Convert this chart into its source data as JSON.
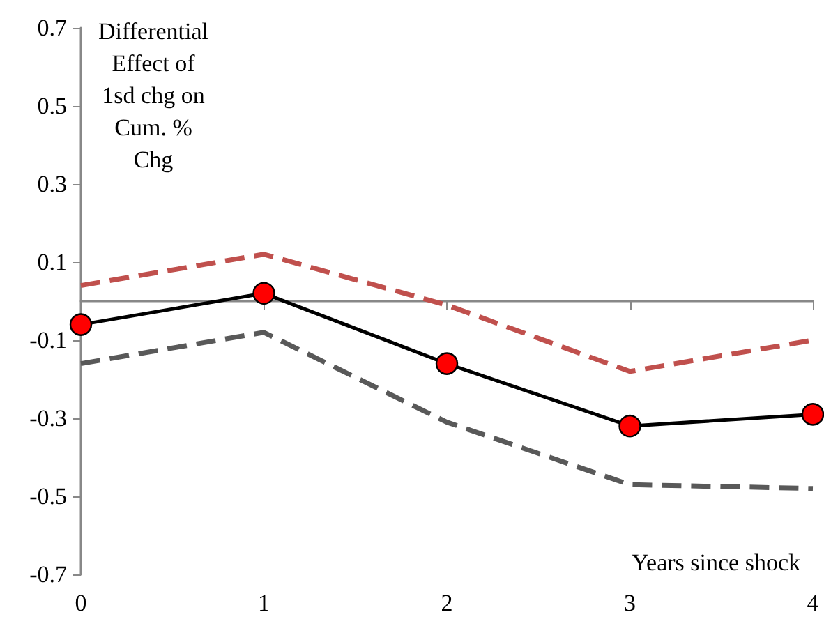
{
  "chart_data": {
    "type": "line",
    "ylabel": "Differential Effect of 1sd chg on Cum. % Chg",
    "xlabel": "Years since shock",
    "categories": [
      "0",
      "1",
      "2",
      "3",
      "4"
    ],
    "series": [
      {
        "color": "#c0504d",
        "line_style": "dashed",
        "marker": "none",
        "values": [
          0.04,
          0.12,
          -0.01,
          -0.18,
          -0.1
        ]
      },
      {
        "color": "#000000",
        "line_style": "solid",
        "marker": "circle",
        "values": [
          -0.06,
          0.02,
          -0.16,
          -0.32,
          -0.29
        ]
      },
      {
        "color": "#595959",
        "line_style": "dashed",
        "marker": "none",
        "values": [
          -0.16,
          -0.08,
          -0.31,
          -0.47,
          -0.48
        ]
      }
    ],
    "ylim": [
      -0.7,
      0.7
    ],
    "yticks": [
      -0.7,
      -0.5,
      -0.3,
      -0.1,
      0.1,
      0.3,
      0.5,
      0.7
    ],
    "grid": false
  }
}
